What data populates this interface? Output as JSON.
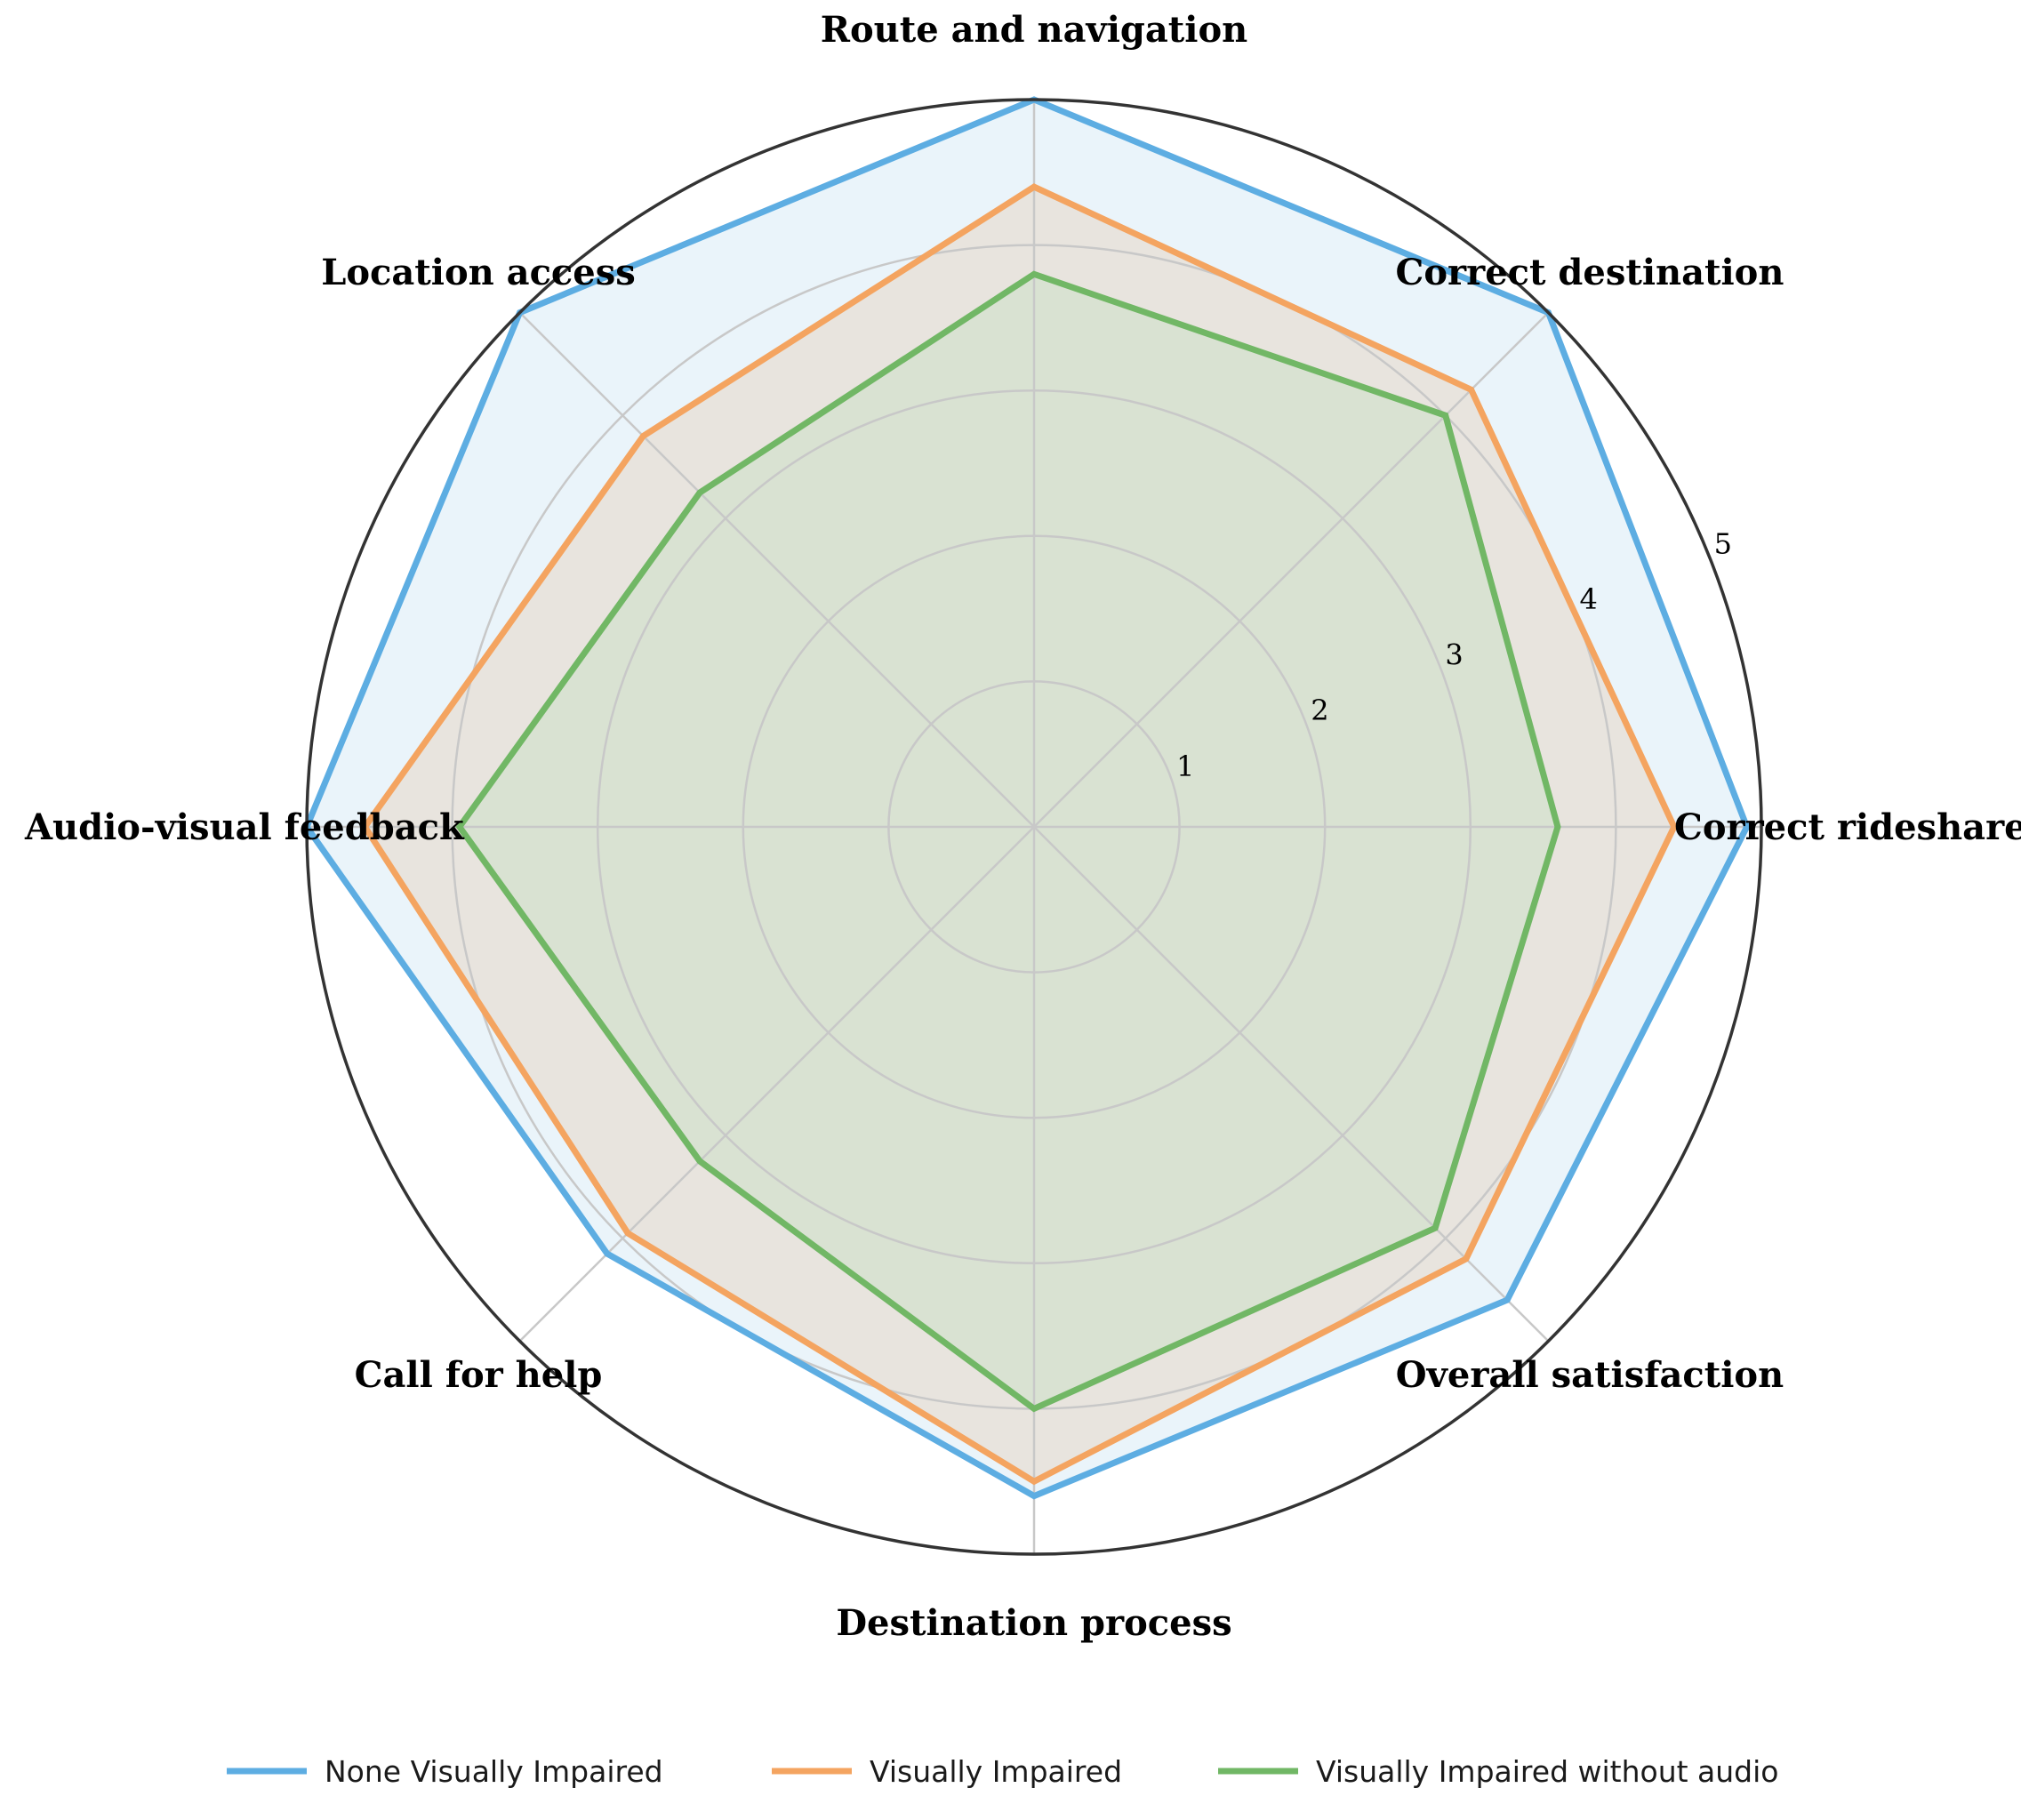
{
  "chart_data": {
    "type": "radar",
    "categories": [
      "Correct rideshare",
      "Correct destination",
      "Route and navigation",
      "Location access",
      "Audio-visual feedback",
      "Call for help",
      "Destination process",
      "Overall satisfaction"
    ],
    "rlim": [
      0,
      5
    ],
    "rticks": [
      "1",
      "2",
      "3",
      "4",
      "5"
    ],
    "grid": true,
    "legend_position": "bottom",
    "series": [
      {
        "name": "None Visually Impaired",
        "color": "#5DADE2",
        "fill": "#EAF4FA",
        "values": [
          4.9,
          5.0,
          5.0,
          5.0,
          5.0,
          4.15,
          4.6,
          4.6
        ]
      },
      {
        "name": "Visually Impaired",
        "color": "#F4A460",
        "fill": "#E8E4DE",
        "values": [
          4.4,
          4.25,
          4.4,
          3.8,
          4.6,
          3.95,
          4.5,
          4.2
        ]
      },
      {
        "name": "Visually Impaired without audio",
        "color": "#71B765",
        "fill": "#D9E2D2",
        "values": [
          3.6,
          4.0,
          3.8,
          3.25,
          3.95,
          3.25,
          4.0,
          3.9
        ]
      }
    ]
  }
}
